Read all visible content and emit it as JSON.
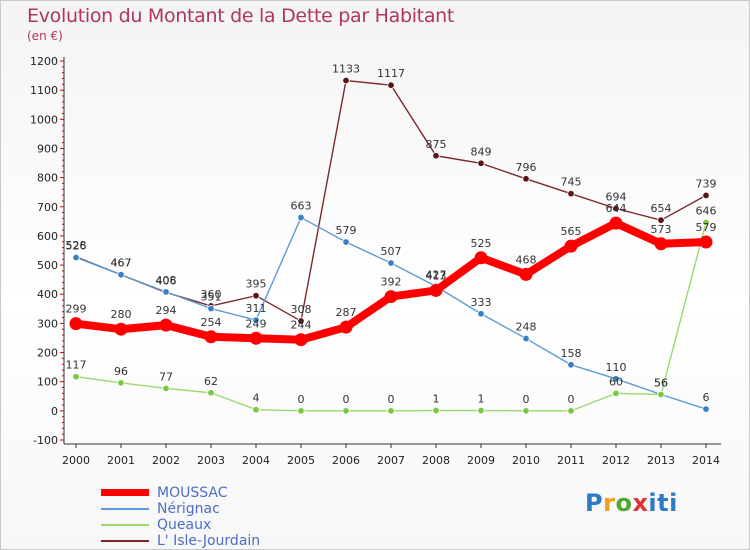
{
  "chart_data": {
    "type": "line",
    "title": "Evolution du Montant de la Dette par Habitant",
    "subtitle": "(en €)",
    "xlabel": "",
    "ylabel": "",
    "categories": [
      "2000",
      "2001",
      "2002",
      "2003",
      "2004",
      "2005",
      "2006",
      "2007",
      "2008",
      "2009",
      "2010",
      "2011",
      "2012",
      "2013",
      "2014"
    ],
    "ylim": [
      -100,
      1200
    ],
    "yticks": [
      -100,
      0,
      100,
      200,
      300,
      400,
      500,
      600,
      700,
      800,
      900,
      1000,
      1100,
      1200
    ],
    "grid": false,
    "legend_position": "bottom-left",
    "series": [
      {
        "name": "L' Isle-Jourdain",
        "color": "#7a2a2a",
        "dot": "#5a1515",
        "values": [
          528,
          467,
          406,
          360,
          395,
          308,
          1133,
          1117,
          875,
          849,
          796,
          745,
          694,
          654,
          739
        ]
      },
      {
        "name": "Nérignac",
        "color": "#5b9bd5",
        "dot": "#3a7fc4",
        "values": [
          526,
          467,
          408,
          351,
          311,
          663,
          579,
          507,
          427,
          333,
          248,
          158,
          110,
          56,
          6
        ]
      },
      {
        "name": "Queaux",
        "color": "#9bd870",
        "dot": "#7ac843",
        "values": [
          117,
          96,
          77,
          62,
          4,
          0,
          0,
          0,
          1,
          1,
          0,
          0,
          60,
          56,
          646
        ]
      },
      {
        "name": "MOUSSAC",
        "color": "#ff0000",
        "dot": "#ff0000",
        "values": [
          299,
          280,
          294,
          254,
          249,
          244,
          287,
          392,
          413,
          525,
          468,
          565,
          644,
          573,
          579
        ]
      }
    ]
  },
  "logo": {
    "p": "P",
    "r": "r",
    "o": "o",
    "x": "x",
    "i": "iti"
  }
}
